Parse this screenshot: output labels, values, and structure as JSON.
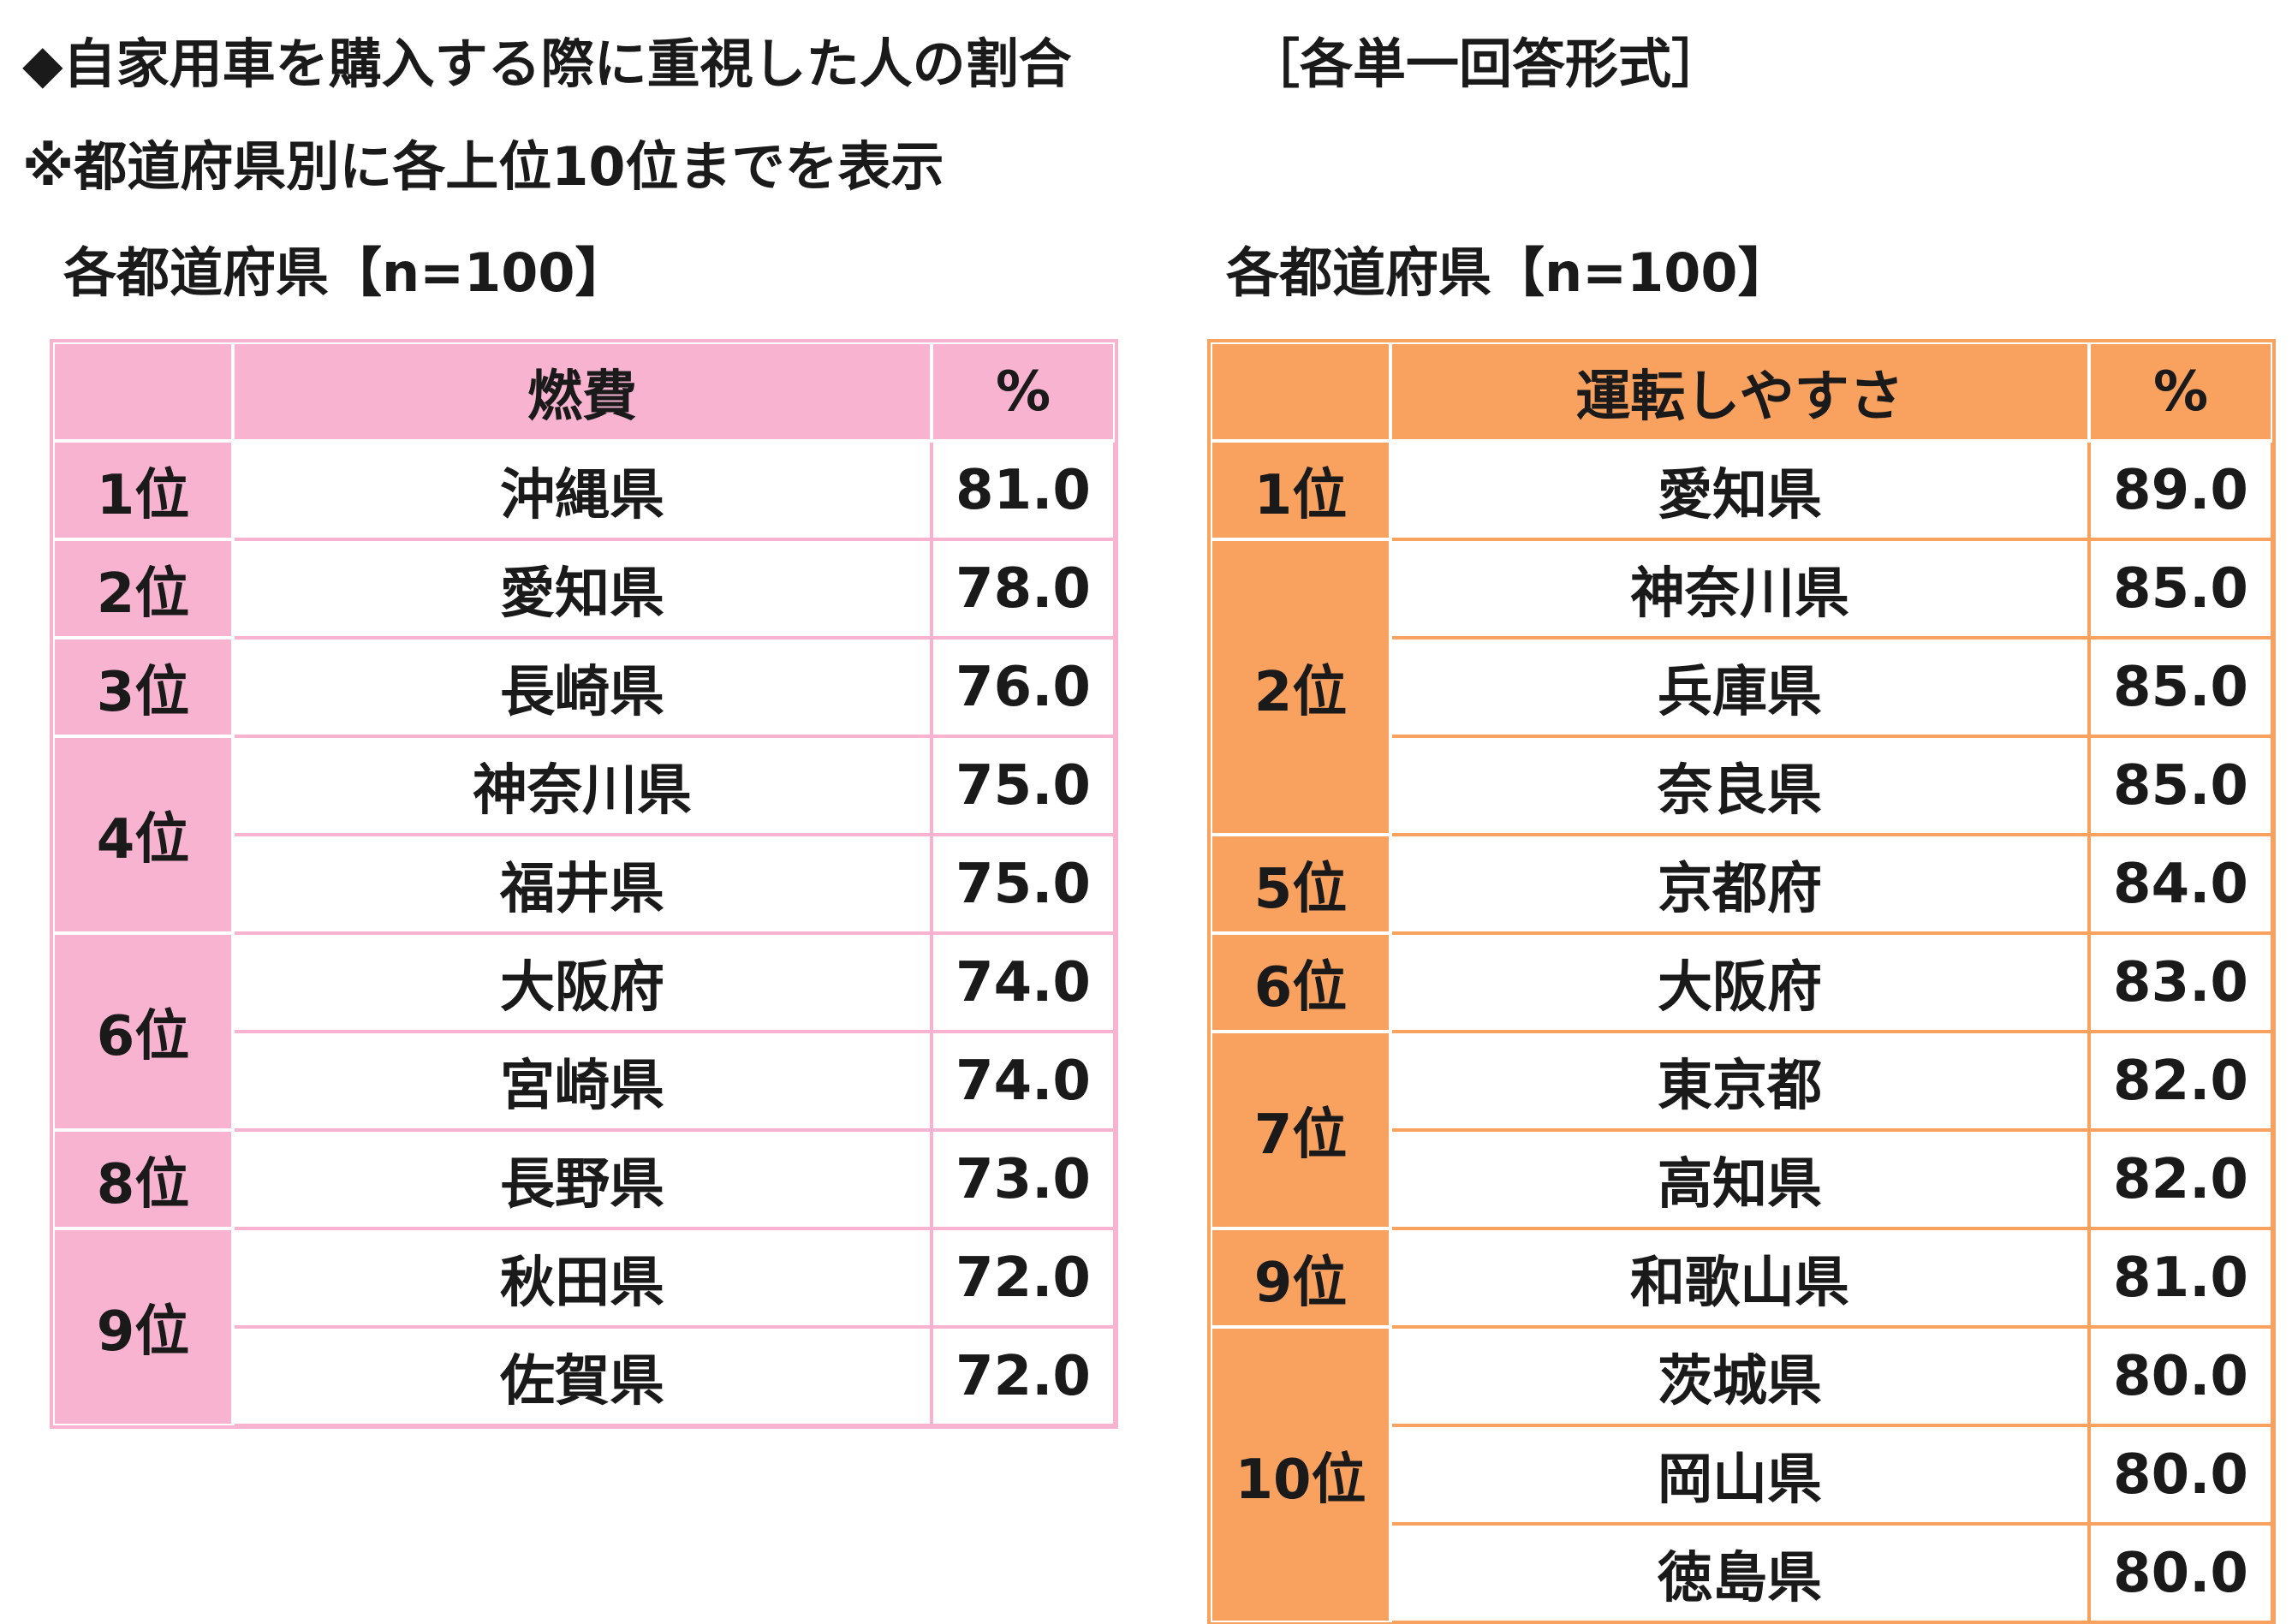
{
  "header": {
    "title": "◆自家用車を購入する際に重視した人の割合",
    "format": "［各単一回答形式］",
    "note": "※都道府県別に各上位10位までを表示"
  },
  "left": {
    "subtitle": "各都道府県【n=100】",
    "color": "#f7b3cf",
    "header": {
      "rank": "",
      "item": "燃費",
      "pct": "%"
    },
    "groups": [
      {
        "rank": "1位",
        "rows": [
          {
            "pref": "沖縄県",
            "value": "81.0"
          }
        ]
      },
      {
        "rank": "2位",
        "rows": [
          {
            "pref": "愛知県",
            "value": "78.0"
          }
        ]
      },
      {
        "rank": "3位",
        "rows": [
          {
            "pref": "長崎県",
            "value": "76.0"
          }
        ]
      },
      {
        "rank": "4位",
        "rows": [
          {
            "pref": "神奈川県",
            "value": "75.0"
          },
          {
            "pref": "福井県",
            "value": "75.0"
          }
        ]
      },
      {
        "rank": "6位",
        "rows": [
          {
            "pref": "大阪府",
            "value": "74.0"
          },
          {
            "pref": "宮崎県",
            "value": "74.0"
          }
        ]
      },
      {
        "rank": "8位",
        "rows": [
          {
            "pref": "長野県",
            "value": "73.0"
          }
        ]
      },
      {
        "rank": "9位",
        "rows": [
          {
            "pref": "秋田県",
            "value": "72.0"
          },
          {
            "pref": "佐賀県",
            "value": "72.0"
          }
        ]
      }
    ]
  },
  "right": {
    "subtitle": "各都道府県【n=100】",
    "color": "#f9a15f",
    "header": {
      "rank": "",
      "item": "運転しやすさ",
      "pct": "%"
    },
    "groups": [
      {
        "rank": "1位",
        "rows": [
          {
            "pref": "愛知県",
            "value": "89.0"
          }
        ]
      },
      {
        "rank": "2位",
        "rows": [
          {
            "pref": "神奈川県",
            "value": "85.0"
          },
          {
            "pref": "兵庫県",
            "value": "85.0"
          },
          {
            "pref": "奈良県",
            "value": "85.0"
          }
        ]
      },
      {
        "rank": "5位",
        "rows": [
          {
            "pref": "京都府",
            "value": "84.0"
          }
        ]
      },
      {
        "rank": "6位",
        "rows": [
          {
            "pref": "大阪府",
            "value": "83.0"
          }
        ]
      },
      {
        "rank": "7位",
        "rows": [
          {
            "pref": "東京都",
            "value": "82.0"
          },
          {
            "pref": "高知県",
            "value": "82.0"
          }
        ]
      },
      {
        "rank": "9位",
        "rows": [
          {
            "pref": "和歌山県",
            "value": "81.0"
          }
        ]
      },
      {
        "rank": "10位",
        "rows": [
          {
            "pref": "茨城県",
            "value": "80.0"
          },
          {
            "pref": "岡山県",
            "value": "80.0"
          },
          {
            "pref": "徳島県",
            "value": "80.0"
          }
        ]
      }
    ]
  }
}
